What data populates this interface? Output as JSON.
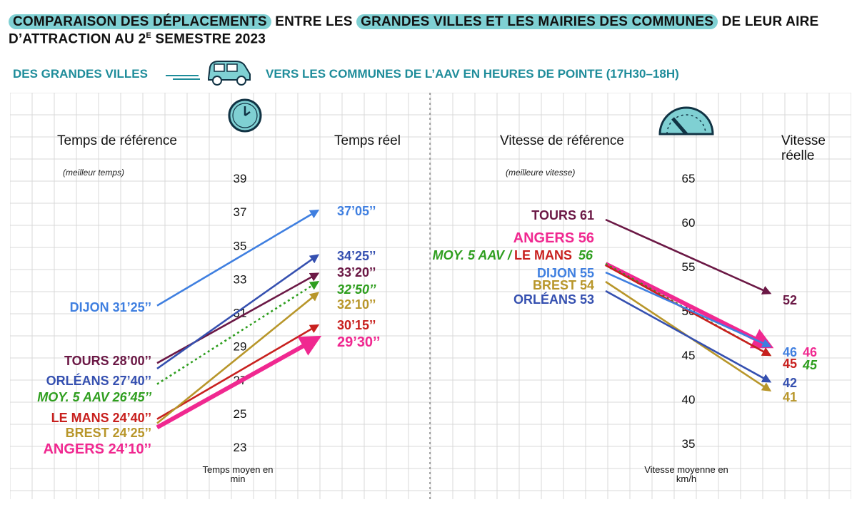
{
  "header": {
    "title_parts": [
      {
        "text": "COMPARAISON DES DÉPLACEMENTS",
        "highlight": true
      },
      {
        "text": " ENTRE LES ",
        "highlight": false
      },
      {
        "text": "GRANDES VILLES ET LES MAIRIES DES COMMUNES",
        "highlight": true
      },
      {
        "text": " DE LEUR AIRE",
        "highlight": false
      }
    ],
    "title_line2": "D’ATTRACTION AU 2",
    "title_line2_sup": "E",
    "title_line2_end": " SEMESTRE 2023",
    "subtitle_left": "DES GRANDES VILLES",
    "subtitle_right": "VERS LES COMMUNES DE L’AAV EN HEURES DE POINTE (17H30–18H)"
  },
  "icons": {
    "car": "car-icon",
    "clock": "clock-icon",
    "speedometer": "speedometer-icon"
  },
  "colors": {
    "accent": "#7fd0d3",
    "accent_text": "#1e8c9a",
    "grid": "#d9d9d9"
  },
  "chart_data": [
    {
      "type": "slope",
      "title": "",
      "left_header": "Temps de référence",
      "left_note": "(meilleur temps)",
      "right_header": "Temps réel",
      "axis_label": "Temps moyen en min",
      "ylim": [
        23,
        39
      ],
      "ticks": [
        "39",
        "37",
        "35",
        "33",
        "31",
        "29",
        "27",
        "25",
        "23"
      ],
      "series": [
        {
          "name": "DIJON",
          "color": "#3f7fe0",
          "from": 31.42,
          "to": 37.08,
          "from_label": "31’25’’",
          "to_label": "37’05’’",
          "style": "solid"
        },
        {
          "name": "TOURS",
          "color": "#6b1845",
          "from": 28.0,
          "to": 33.33,
          "from_label": "28’00’’",
          "to_label": "33’20’’",
          "style": "solid"
        },
        {
          "name": "ORLÉANS",
          "color": "#3550b0",
          "from": 27.67,
          "to": 34.42,
          "from_label": "27’40’’",
          "to_label": "34’25’’",
          "style": "solid"
        },
        {
          "name": "MOY. 5 AAV",
          "color": "#2e9e1e",
          "from": 26.75,
          "to": 32.83,
          "from_label": "26’45’’",
          "to_label": "32’50’’",
          "style": "dotted"
        },
        {
          "name": "LE MANS",
          "color": "#c8201e",
          "from": 24.67,
          "to": 30.25,
          "from_label": "24’40’’",
          "to_label": "30’15’’",
          "style": "solid"
        },
        {
          "name": "BREST",
          "color": "#b8962a",
          "from": 24.42,
          "to": 32.17,
          "from_label": "24’25’’",
          "to_label": "32’10’’",
          "style": "solid"
        },
        {
          "name": "ANGERS",
          "color": "#f02890",
          "from": 24.17,
          "to": 29.5,
          "from_label": "24’10’’",
          "to_label": "29’30’’",
          "style": "bold"
        }
      ]
    },
    {
      "type": "slope",
      "title": "",
      "left_header": "Vitesse de référence",
      "left_note": "(meilleure vitesse)",
      "right_header": "Vitesse réelle",
      "axis_label": "Vitesse moyenne en km/h",
      "ylim": [
        35,
        65
      ],
      "ticks": [
        "65",
        "60",
        "55",
        "50",
        "45",
        "40",
        "35"
      ],
      "series": [
        {
          "name": "TOURS",
          "color": "#6b1845",
          "from": 61,
          "to": 52,
          "from_label": "TOURS 61",
          "to_label": "52",
          "style": "solid"
        },
        {
          "name": "ANGERS",
          "color": "#f02890",
          "from": 56,
          "to": 46,
          "from_label": "ANGERS 56",
          "to_label": "46",
          "style": "bold"
        },
        {
          "name": "MOY. 5 AAV",
          "color": "#2e9e1e",
          "from": 56,
          "to": 45,
          "from_label": "MOY. 5 AAV /",
          "to_label": "45",
          "style": "dotted"
        },
        {
          "name": "LE MANS",
          "color": "#c8201e",
          "from": 56,
          "to": 45,
          "from_label": "LE MANS",
          "to_label": "45",
          "style": "solid",
          "shared_value_label": "56"
        },
        {
          "name": "DIJON",
          "color": "#3f7fe0",
          "from": 55,
          "to": 46,
          "from_label": "DIJON 55",
          "to_label": "46",
          "style": "solid"
        },
        {
          "name": "BREST",
          "color": "#b8962a",
          "from": 54,
          "to": 41,
          "from_label": "BREST 54",
          "to_label": "41",
          "style": "solid"
        },
        {
          "name": "ORLÉANS",
          "color": "#3550b0",
          "from": 53,
          "to": 42,
          "from_label": "ORLÉANS 53",
          "to_label": "42",
          "style": "solid"
        }
      ]
    }
  ]
}
